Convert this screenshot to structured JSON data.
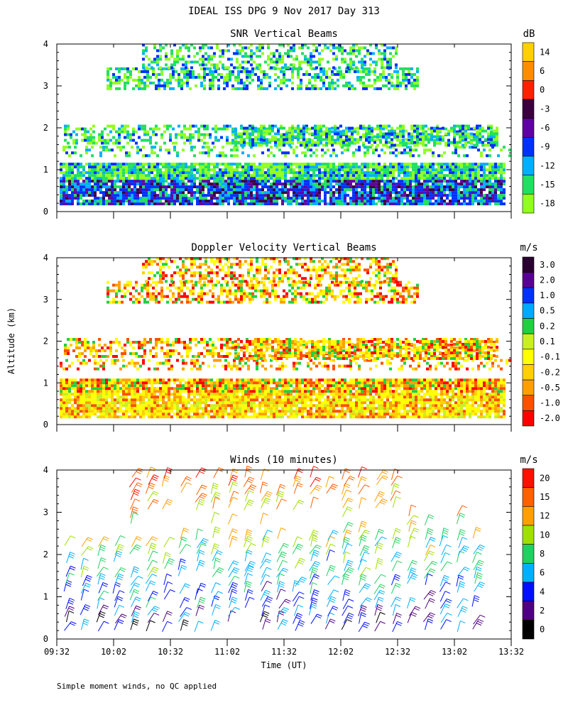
{
  "title": "IDEAL ISS DPG   9 Nov 2017 Day 313",
  "ylabel_shared": "Altitude (km)",
  "xlabel": "Time (UT)",
  "footnote": "Simple moment winds, no QC applied",
  "chart_data": [
    {
      "type": "heatmap",
      "title": "SNR Vertical Beams",
      "ylabel": "Altitude (km)",
      "xlabel": "",
      "xlim": [
        "09:32",
        "13:32"
      ],
      "ylim": [
        0,
        4
      ],
      "yticks": [
        "0",
        "1",
        "2",
        "3",
        "4"
      ],
      "colorbar": {
        "unit": "dB",
        "labels": [
          "14",
          "6",
          "0",
          "-3",
          "-6",
          "-9",
          "-12",
          "-15",
          "-18"
        ],
        "colors": [
          "#ffd000",
          "#ff8c00",
          "#ff2000",
          "#3a0040",
          "#6000a0",
          "#0030ff",
          "#00b0ff",
          "#20e060",
          "#90ff20"
        ]
      }
    },
    {
      "type": "heatmap",
      "title": "Doppler Velocity Vertical Beams",
      "ylabel": "Altitude (km)",
      "xlabel": "",
      "xlim": [
        "09:32",
        "13:32"
      ],
      "ylim": [
        0,
        4
      ],
      "yticks": [
        "0",
        "1",
        "2",
        "3",
        "4"
      ],
      "colorbar": {
        "unit": "m/s",
        "labels": [
          "3.0",
          "2.0",
          "1.0",
          "0.5",
          "0.2",
          "0.1",
          "-0.1",
          "-0.2",
          "-0.5",
          "-1.0",
          "-2.0"
        ],
        "colors": [
          "#2a0030",
          "#5a0090",
          "#0030ff",
          "#00a8ff",
          "#20d040",
          "#c8f020",
          "#ffff00",
          "#ffd000",
          "#ffa000",
          "#ff5000",
          "#ff0000"
        ]
      }
    },
    {
      "type": "wind_barbs",
      "title": "Winds (10 minutes)",
      "ylabel": "Altitude (km)",
      "xlabel": "Time (UT)",
      "xlim": [
        "09:32",
        "13:32"
      ],
      "xticks": [
        "09:32",
        "10:02",
        "10:32",
        "11:02",
        "11:32",
        "12:02",
        "12:32",
        "13:02",
        "13:32"
      ],
      "ylim": [
        0,
        4
      ],
      "yticks": [
        "0",
        "1",
        "2",
        "3",
        "4"
      ],
      "colorbar": {
        "unit": "m/s",
        "labels": [
          "20",
          "15",
          "12",
          "10",
          "8",
          "6",
          "4",
          "2",
          "0"
        ],
        "colors": [
          "#ff1000",
          "#ff6000",
          "#ffa000",
          "#a0e000",
          "#20d060",
          "#00b0ff",
          "#0010ff",
          "#500080",
          "#000000"
        ]
      }
    }
  ]
}
